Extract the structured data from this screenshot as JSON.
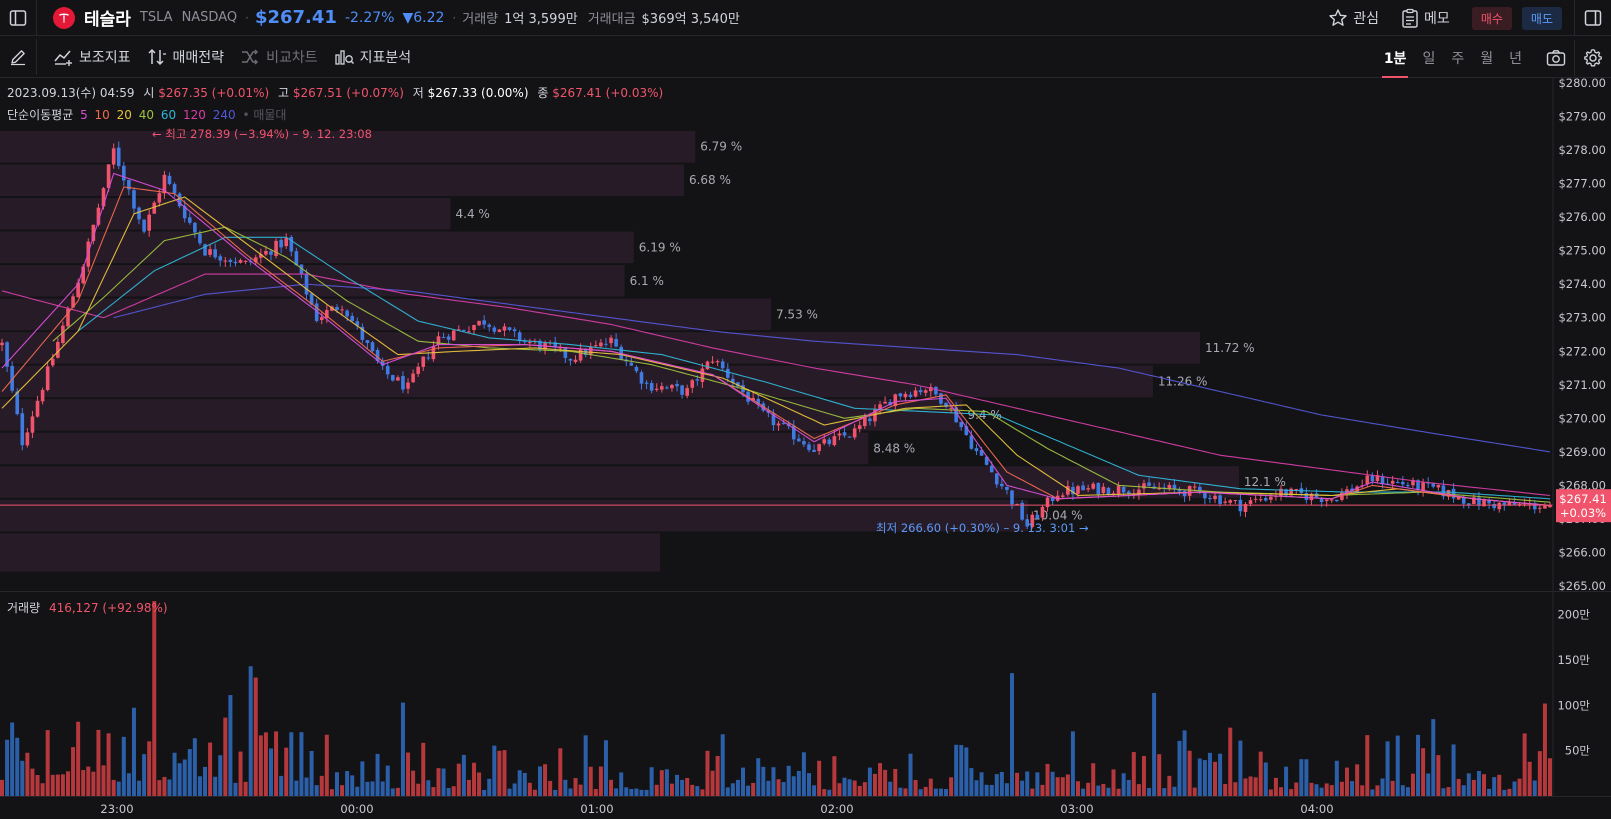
{
  "header": {
    "name": "테슬라",
    "symbol": "TSLA",
    "exchange": "NASDAQ",
    "sep": "·",
    "price": "$267.41",
    "change_pct": "-2.27%",
    "change_abs": "▼6.22",
    "volume_label": "거래량",
    "volume_value": "1억 3,599만",
    "amount_label": "거래대금",
    "amount_value": "$369억 3,540만",
    "watch_label": "관심",
    "memo_label": "메모",
    "buy_label": "매수",
    "sell_label": "매도"
  },
  "toolbar": {
    "indicators_label": "보조지표",
    "strategy_label": "매매전략",
    "compare_label": "비교차트",
    "analysis_label": "지표분석",
    "timeframes": [
      "1분",
      "일",
      "주",
      "월",
      "년"
    ],
    "active_timeframe": "1분"
  },
  "legend": {
    "date": "2023.09.13(수) 04:59",
    "open_label": "시",
    "open": "$267.35 (+0.01%)",
    "high_label": "고",
    "high": "$267.51 (+0.07%)",
    "low_label": "저",
    "low": "$267.33 (0.00%)",
    "close_label": "종",
    "close": "$267.41 (+0.03%)",
    "ma_label": "단순이동평균",
    "ma_periods": [
      "5",
      "10",
      "20",
      "40",
      "60",
      "120",
      "240"
    ],
    "ma_extra": "• 매물대",
    "volume_label": "거래량",
    "volume_value": "416,127 (+92.98%)"
  },
  "colors": {
    "up": "#f0546c",
    "down": "#3f7be0",
    "ma5": "#d84fd8",
    "ma10": "#f06a4e",
    "ma20": "#e8c33b",
    "ma40": "#9dc03e",
    "ma60": "#2fb6d6",
    "ma120": "#d63ea6",
    "ma240": "#5457d6"
  },
  "chart_data": {
    "type": "candlestick",
    "interval": "1분",
    "ylim": [
      265.0,
      280.0
    ],
    "y_ticks": [
      "$265.00",
      "$266.00",
      "$267.00",
      "$268.00",
      "$269.00",
      "$270.00",
      "$271.00",
      "$272.00",
      "$273.00",
      "$274.00",
      "$275.00",
      "$276.00",
      "$277.00",
      "$278.00",
      "$279.00",
      "$280.00"
    ],
    "x_ticks": [
      "23:00",
      "00:00",
      "01:00",
      "02:00",
      "03:00",
      "04:00"
    ],
    "current_price": "$267.41",
    "current_change": "+0.03%",
    "last_close": 267.41,
    "high_annotation": "← 최고 278.39 (−3.94%) – 9. 12. 23:08",
    "low_annotation": "최저 266.60 (+0.30%) – 9. 13. 3:01 →",
    "path": [
      [
        0,
        272.2
      ],
      [
        4,
        269.3
      ],
      [
        10,
        271.8
      ],
      [
        16,
        274.6
      ],
      [
        22,
        278.0
      ],
      [
        28,
        275.6
      ],
      [
        32,
        277.2
      ],
      [
        40,
        275.0
      ],
      [
        48,
        274.6
      ],
      [
        56,
        275.3
      ],
      [
        62,
        273.0
      ],
      [
        67,
        273.4
      ],
      [
        75,
        271.4
      ],
      [
        80,
        270.9
      ],
      [
        83,
        271.7
      ],
      [
        86,
        272.4
      ],
      [
        95,
        272.9
      ],
      [
        103,
        272.3
      ],
      [
        108,
        272.1
      ],
      [
        112,
        271.8
      ],
      [
        120,
        272.3
      ],
      [
        127,
        271.0
      ],
      [
        135,
        270.8
      ],
      [
        140,
        271.8
      ],
      [
        150,
        270.1
      ],
      [
        160,
        269.1
      ],
      [
        168,
        269.6
      ],
      [
        176,
        270.7
      ],
      [
        182,
        270.9
      ],
      [
        186,
        270.5
      ],
      [
        188,
        270.0
      ],
      [
        192,
        269.0
      ],
      [
        198,
        267.8
      ],
      [
        202,
        266.8
      ],
      [
        208,
        267.8
      ],
      [
        215,
        267.9
      ],
      [
        228,
        267.9
      ],
      [
        236,
        267.8
      ],
      [
        244,
        267.4
      ],
      [
        252,
        267.8
      ],
      [
        262,
        267.6
      ],
      [
        270,
        268.2
      ],
      [
        282,
        267.9
      ],
      [
        290,
        267.5
      ],
      [
        296,
        267.4
      ],
      [
        305,
        267.4
      ]
    ],
    "ma_paths": {
      "ma5": [
        [
          0,
          271.5
        ],
        [
          15,
          274.0
        ],
        [
          22,
          277.3
        ],
        [
          32,
          276.8
        ],
        [
          48,
          274.8
        ],
        [
          62,
          273.2
        ],
        [
          75,
          271.6
        ],
        [
          86,
          272.2
        ],
        [
          103,
          272.2
        ],
        [
          120,
          272.0
        ],
        [
          140,
          271.3
        ],
        [
          160,
          269.3
        ],
        [
          176,
          270.5
        ],
        [
          186,
          270.6
        ],
        [
          198,
          268.0
        ],
        [
          208,
          267.6
        ],
        [
          236,
          267.8
        ],
        [
          262,
          267.6
        ],
        [
          270,
          268.1
        ],
        [
          290,
          267.6
        ],
        [
          305,
          267.4
        ]
      ],
      "ma10": [
        [
          0,
          270.8
        ],
        [
          15,
          273.5
        ],
        [
          24,
          276.9
        ],
        [
          34,
          276.7
        ],
        [
          48,
          274.9
        ],
        [
          62,
          273.3
        ],
        [
          75,
          271.7
        ],
        [
          86,
          272.1
        ],
        [
          103,
          272.2
        ],
        [
          120,
          272.0
        ],
        [
          140,
          271.3
        ],
        [
          160,
          269.4
        ],
        [
          176,
          270.4
        ],
        [
          186,
          270.7
        ],
        [
          198,
          268.4
        ],
        [
          208,
          267.6
        ],
        [
          236,
          267.8
        ],
        [
          262,
          267.6
        ],
        [
          270,
          268.0
        ],
        [
          290,
          267.6
        ],
        [
          305,
          267.4
        ]
      ],
      "ma20": [
        [
          0,
          270.3
        ],
        [
          15,
          272.6
        ],
        [
          26,
          276.1
        ],
        [
          36,
          276.6
        ],
        [
          50,
          275.0
        ],
        [
          64,
          273.4
        ],
        [
          78,
          271.9
        ],
        [
          90,
          272.0
        ],
        [
          105,
          272.1
        ],
        [
          122,
          271.9
        ],
        [
          142,
          271.2
        ],
        [
          162,
          269.8
        ],
        [
          178,
          270.3
        ],
        [
          190,
          270.4
        ],
        [
          200,
          268.9
        ],
        [
          212,
          267.7
        ],
        [
          236,
          267.8
        ],
        [
          262,
          267.7
        ],
        [
          275,
          267.9
        ],
        [
          290,
          267.6
        ],
        [
          305,
          267.4
        ]
      ],
      "ma40": [
        [
          10,
          272.3
        ],
        [
          20,
          273.6
        ],
        [
          32,
          275.3
        ],
        [
          44,
          275.7
        ],
        [
          56,
          274.8
        ],
        [
          68,
          273.5
        ],
        [
          82,
          272.3
        ],
        [
          96,
          272.1
        ],
        [
          112,
          272.0
        ],
        [
          128,
          271.6
        ],
        [
          148,
          270.8
        ],
        [
          166,
          270.0
        ],
        [
          180,
          270.3
        ],
        [
          194,
          270.2
        ],
        [
          206,
          269.1
        ],
        [
          220,
          268.0
        ],
        [
          240,
          267.8
        ],
        [
          262,
          267.7
        ],
        [
          280,
          267.8
        ],
        [
          305,
          267.5
        ]
      ],
      "ma60": [
        [
          15,
          272.6
        ],
        [
          30,
          274.4
        ],
        [
          44,
          275.4
        ],
        [
          56,
          275.4
        ],
        [
          68,
          274.2
        ],
        [
          82,
          272.9
        ],
        [
          96,
          272.4
        ],
        [
          112,
          272.2
        ],
        [
          130,
          271.9
        ],
        [
          150,
          271.1
        ],
        [
          168,
          270.3
        ],
        [
          182,
          270.2
        ],
        [
          196,
          270.1
        ],
        [
          210,
          269.2
        ],
        [
          224,
          268.3
        ],
        [
          244,
          267.9
        ],
        [
          265,
          267.8
        ],
        [
          285,
          267.8
        ],
        [
          305,
          267.6
        ]
      ],
      "ma120": [
        [
          0,
          273.8
        ],
        [
          20,
          273.0
        ],
        [
          40,
          274.3
        ],
        [
          60,
          274.3
        ],
        [
          80,
          273.7
        ],
        [
          100,
          273.3
        ],
        [
          120,
          272.8
        ],
        [
          140,
          272.1
        ],
        [
          160,
          271.5
        ],
        [
          180,
          271.0
        ],
        [
          200,
          270.3
        ],
        [
          220,
          269.6
        ],
        [
          240,
          268.9
        ],
        [
          260,
          268.5
        ],
        [
          280,
          268.1
        ],
        [
          305,
          267.7
        ]
      ],
      "ma240": [
        [
          22,
          273.0
        ],
        [
          40,
          273.7
        ],
        [
          60,
          274.0
        ],
        [
          80,
          273.8
        ],
        [
          100,
          273.4
        ],
        [
          120,
          273.0
        ],
        [
          140,
          272.6
        ],
        [
          160,
          272.3
        ],
        [
          180,
          272.1
        ],
        [
          200,
          271.9
        ],
        [
          220,
          271.5
        ],
        [
          240,
          270.8
        ],
        [
          260,
          270.1
        ],
        [
          280,
          269.6
        ],
        [
          305,
          269.0
        ]
      ]
    },
    "volume_profile": [
      {
        "low": 265.4,
        "high": 266.6,
        "pct_label": ""
      },
      {
        "low": 266.6,
        "high": 267.6,
        "pct_label": "10.04 %"
      },
      {
        "low": 267.6,
        "high": 268.6,
        "pct_label": "12.1 %"
      },
      {
        "low": 268.6,
        "high": 269.6,
        "pct_label": "8.48 %"
      },
      {
        "low": 269.6,
        "high": 270.6,
        "pct_label": "9.4 %"
      },
      {
        "low": 270.6,
        "high": 271.6,
        "pct_label": "11.26 %"
      },
      {
        "low": 271.6,
        "high": 272.6,
        "pct_label": "11.72 %"
      },
      {
        "low": 272.6,
        "high": 273.6,
        "pct_label": "7.53 %"
      },
      {
        "low": 273.6,
        "high": 274.6,
        "pct_label": "6.1 %"
      },
      {
        "low": 274.6,
        "high": 275.6,
        "pct_label": "6.19 %"
      },
      {
        "low": 275.6,
        "high": 276.6,
        "pct_label": "4.4 %"
      },
      {
        "low": 276.6,
        "high": 277.6,
        "pct_label": "6.68 %"
      },
      {
        "low": 277.6,
        "high": 278.6,
        "pct_label": "6.79 %"
      }
    ],
    "volume": {
      "ylim": [
        0,
        2250000
      ],
      "y_ticks": [
        {
          "value": 500000,
          "label": "50만"
        },
        {
          "value": 1000000,
          "label": "100만"
        },
        {
          "value": 1500000,
          "label": "150만"
        },
        {
          "value": 2000000,
          "label": "200만"
        }
      ],
      "last": 416127
    }
  }
}
